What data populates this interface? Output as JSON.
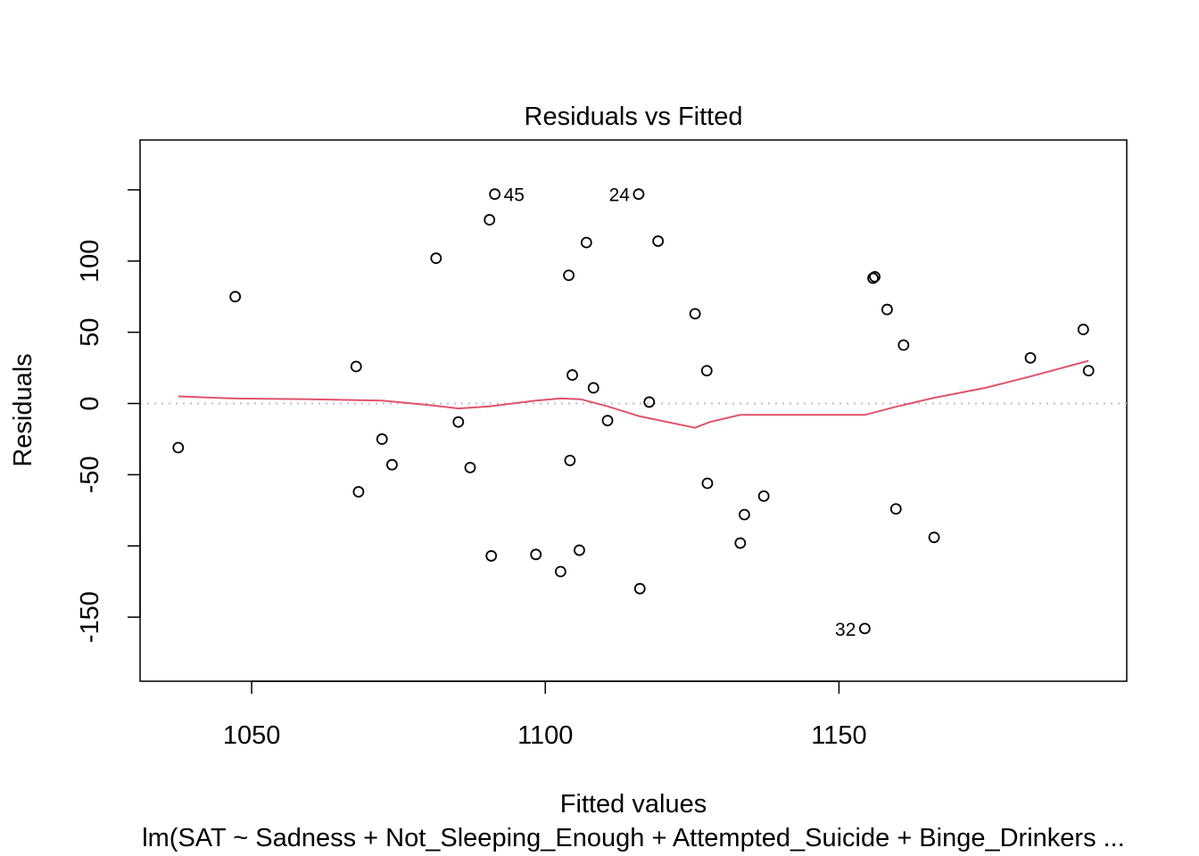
{
  "chart_data": {
    "type": "scatter",
    "title": "Residuals vs Fitted",
    "xlabel": "Fitted values",
    "ylabel": "Residuals",
    "subtitle": "lm(SAT ~ Sadness + Not_Sleeping_Enough + Attempted_Suicide + Binge_Drinkers ...",
    "xlim": [
      1031,
      1199
    ],
    "ylim": [
      -195,
      185
    ],
    "xticks": [
      1050,
      1100,
      1150
    ],
    "yticks": [
      -150,
      -100,
      -50,
      0,
      50,
      100,
      150
    ],
    "ytick_labels": [
      "-150",
      "",
      "-50",
      "0",
      "50",
      "100",
      ""
    ],
    "reference_line": {
      "y": 0,
      "style": "dotted",
      "color": "#BEBEBE"
    },
    "smooth_color": "#DF536B",
    "points": [
      {
        "x": 1037.5,
        "y": -31
      },
      {
        "x": 1047.2,
        "y": 75
      },
      {
        "x": 1067.8,
        "y": 26
      },
      {
        "x": 1068.2,
        "y": -62
      },
      {
        "x": 1072.2,
        "y": -25
      },
      {
        "x": 1073.9,
        "y": -43
      },
      {
        "x": 1081.4,
        "y": 102
      },
      {
        "x": 1085.2,
        "y": -13
      },
      {
        "x": 1087.2,
        "y": -45
      },
      {
        "x": 1090.5,
        "y": 129
      },
      {
        "x": 1090.8,
        "y": -107
      },
      {
        "x": 1091.4,
        "y": 147,
        "label": "45"
      },
      {
        "x": 1098.4,
        "y": -106
      },
      {
        "x": 1102.6,
        "y": -118
      },
      {
        "x": 1104.0,
        "y": 90
      },
      {
        "x": 1104.2,
        "y": -40
      },
      {
        "x": 1104.6,
        "y": 20
      },
      {
        "x": 1105.8,
        "y": -103
      },
      {
        "x": 1107.0,
        "y": 113
      },
      {
        "x": 1108.2,
        "y": 11
      },
      {
        "x": 1110.6,
        "y": -12
      },
      {
        "x": 1115.9,
        "y": 147,
        "label": "24"
      },
      {
        "x": 1116.1,
        "y": -130
      },
      {
        "x": 1117.7,
        "y": 1
      },
      {
        "x": 1119.2,
        "y": 114
      },
      {
        "x": 1125.5,
        "y": 63
      },
      {
        "x": 1127.5,
        "y": 23
      },
      {
        "x": 1127.6,
        "y": -56
      },
      {
        "x": 1133.2,
        "y": -98
      },
      {
        "x": 1133.9,
        "y": -78
      },
      {
        "x": 1137.2,
        "y": -65
      },
      {
        "x": 1154.4,
        "y": -158,
        "label": "32"
      },
      {
        "x": 1155.8,
        "y": 88
      },
      {
        "x": 1156.1,
        "y": 89
      },
      {
        "x": 1158.2,
        "y": 66
      },
      {
        "x": 1159.7,
        "y": -74
      },
      {
        "x": 1161.0,
        "y": 41
      },
      {
        "x": 1166.2,
        "y": -94
      },
      {
        "x": 1182.6,
        "y": 32
      },
      {
        "x": 1191.6,
        "y": 52
      },
      {
        "x": 1192.5,
        "y": 23
      }
    ],
    "smooth_line": [
      {
        "x": 1037.5,
        "y": 5
      },
      {
        "x": 1047.2,
        "y": 3.5
      },
      {
        "x": 1060.0,
        "y": 3
      },
      {
        "x": 1072.2,
        "y": 2
      },
      {
        "x": 1080.0,
        "y": -1
      },
      {
        "x": 1085.2,
        "y": -3.5
      },
      {
        "x": 1090.5,
        "y": -2
      },
      {
        "x": 1098.4,
        "y": 2
      },
      {
        "x": 1102.6,
        "y": 3.5
      },
      {
        "x": 1106.0,
        "y": 3
      },
      {
        "x": 1110.6,
        "y": -2
      },
      {
        "x": 1116.1,
        "y": -9
      },
      {
        "x": 1125.5,
        "y": -17
      },
      {
        "x": 1128.0,
        "y": -13
      },
      {
        "x": 1133.2,
        "y": -8
      },
      {
        "x": 1140.0,
        "y": -8
      },
      {
        "x": 1154.4,
        "y": -8
      },
      {
        "x": 1160.0,
        "y": -2
      },
      {
        "x": 1166.2,
        "y": 4
      },
      {
        "x": 1175.0,
        "y": 11
      },
      {
        "x": 1182.6,
        "y": 19
      },
      {
        "x": 1192.5,
        "y": 30
      }
    ]
  }
}
